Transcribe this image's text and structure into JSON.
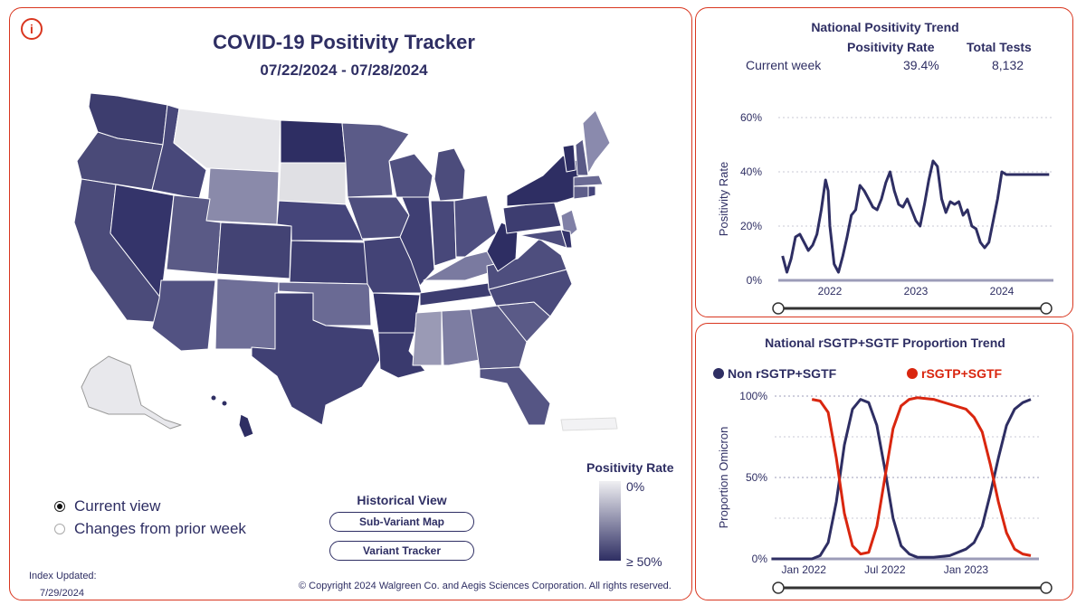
{
  "header": {
    "info_icon": "i",
    "title": "COVID-19 Positivity Tracker",
    "date_range": "07/22/2024 - 07/28/2024"
  },
  "view_options": {
    "current_view": "Current view",
    "changes_view": "Changes from prior week",
    "selected": "current_view"
  },
  "historical": {
    "title": "Historical View",
    "sub_variant_button": "Sub-Variant Map",
    "variant_tracker_button": "Variant Tracker"
  },
  "map_legend": {
    "title": "Positivity Rate",
    "low_label": "0%",
    "high_label": "≥ 50%",
    "low_color": "#efeff2",
    "high_color": "#2e2e63"
  },
  "footer": {
    "index_updated_label": "Index Updated:",
    "index_updated_date": "7/29/2024",
    "copyright": "© Copyright 2024 Walgreen Co. and Aegis Sciences Corporation. All rights reserved."
  },
  "trend": {
    "title": "National Positivity Trend",
    "col_rate": "Positivity Rate",
    "col_tests": "Total Tests",
    "row_label": "Current week",
    "rate_value": "39.4%",
    "tests_value": "8,132"
  },
  "sgtf": {
    "title": "National rSGTP+SGTF Proportion Trend",
    "legend_non": "Non rSGTP+SGTF",
    "legend_sgtf": "rSGTP+SGTF",
    "color_non": "#2e2e63",
    "color_sgtf": "#d9260f"
  },
  "chart_data": [
    {
      "type": "line",
      "title": "National Positivity Trend",
      "ylabel": "Positivity Rate",
      "xlabel": "",
      "ylim": [
        0,
        60
      ],
      "y_ticks": [
        "0%",
        "20%",
        "40%",
        "60%"
      ],
      "x_ticks": [
        "2022",
        "2023",
        "2024"
      ],
      "grid": true,
      "color": "#2e2e63",
      "series": [
        {
          "x": [
            2021.45,
            2021.5,
            2021.55,
            2021.6,
            2021.65,
            2021.7,
            2021.75,
            2021.8,
            2021.85,
            2021.9,
            2021.95,
            2021.98,
            2022.0,
            2022.05,
            2022.1,
            2022.15,
            2022.2,
            2022.25,
            2022.3,
            2022.35,
            2022.4,
            2022.45,
            2022.5,
            2022.55,
            2022.6,
            2022.65,
            2022.7,
            2022.75,
            2022.8,
            2022.85,
            2022.9,
            2022.95,
            2023.0,
            2023.05,
            2023.1,
            2023.15,
            2023.2,
            2023.25,
            2023.3,
            2023.35,
            2023.4,
            2023.45,
            2023.5,
            2023.55,
            2023.6,
            2023.65,
            2023.7,
            2023.75,
            2023.8,
            2023.85,
            2023.9,
            2023.95,
            2024.0,
            2024.05,
            2024.1,
            2024.15,
            2024.2,
            2024.25,
            2024.3,
            2024.35,
            2024.4,
            2024.45,
            2024.5,
            2024.55
          ],
          "y": [
            9,
            3,
            8,
            16,
            17,
            14,
            11,
            13,
            17,
            26,
            37,
            33,
            20,
            6,
            3,
            9,
            16,
            24,
            26,
            35,
            33,
            30,
            27,
            26,
            30,
            36,
            40,
            33,
            28,
            27,
            30,
            26,
            22,
            20,
            28,
            37,
            44,
            42,
            30,
            25,
            29,
            28,
            29,
            24,
            26,
            20,
            19,
            14,
            12,
            14,
            22,
            30,
            40,
            39,
            39,
            39,
            39,
            39,
            39,
            39,
            39,
            39,
            39,
            39
          ]
        }
      ]
    },
    {
      "type": "line",
      "title": "National rSGTP+SGTF Proportion Trend",
      "ylabel": "Proportion Omicron",
      "xlabel": "",
      "ylim": [
        0,
        100
      ],
      "y_ticks": [
        "0%",
        "50%",
        "100%"
      ],
      "x_ticks": [
        "Jan 2022",
        "Jul 2022",
        "Jan 2023"
      ],
      "grid": true,
      "series": [
        {
          "name": "Non rSGTP+SGTF",
          "color": "#2e2e63",
          "x": [
            2021.8,
            2021.9,
            2022.0,
            2022.05,
            2022.1,
            2022.15,
            2022.2,
            2022.25,
            2022.3,
            2022.35,
            2022.4,
            2022.45,
            2022.5,
            2022.55,
            2022.6,
            2022.65,
            2022.7,
            2022.75,
            2022.8,
            2022.9,
            2023.0,
            2023.05,
            2023.1,
            2023.15,
            2023.2,
            2023.25,
            2023.3,
            2023.35,
            2023.4
          ],
          "y": [
            0,
            0,
            0,
            0,
            2,
            10,
            35,
            70,
            92,
            98,
            96,
            82,
            55,
            25,
            8,
            3,
            1,
            1,
            1,
            2,
            6,
            10,
            20,
            40,
            62,
            82,
            92,
            96,
            98
          ]
        },
        {
          "name": "rSGTP+SGTF",
          "color": "#d9260f",
          "x": [
            2022.05,
            2022.1,
            2022.15,
            2022.2,
            2022.25,
            2022.3,
            2022.35,
            2022.4,
            2022.45,
            2022.5,
            2022.55,
            2022.6,
            2022.65,
            2022.7,
            2022.8,
            2022.9,
            2023.0,
            2023.05,
            2023.1,
            2023.15,
            2023.2,
            2023.25,
            2023.3,
            2023.35,
            2023.4
          ],
          "y": [
            98,
            97,
            90,
            62,
            28,
            8,
            3,
            4,
            20,
            50,
            80,
            94,
            98,
            99,
            98,
            95,
            92,
            87,
            78,
            58,
            35,
            16,
            6,
            3,
            2
          ]
        }
      ]
    }
  ]
}
